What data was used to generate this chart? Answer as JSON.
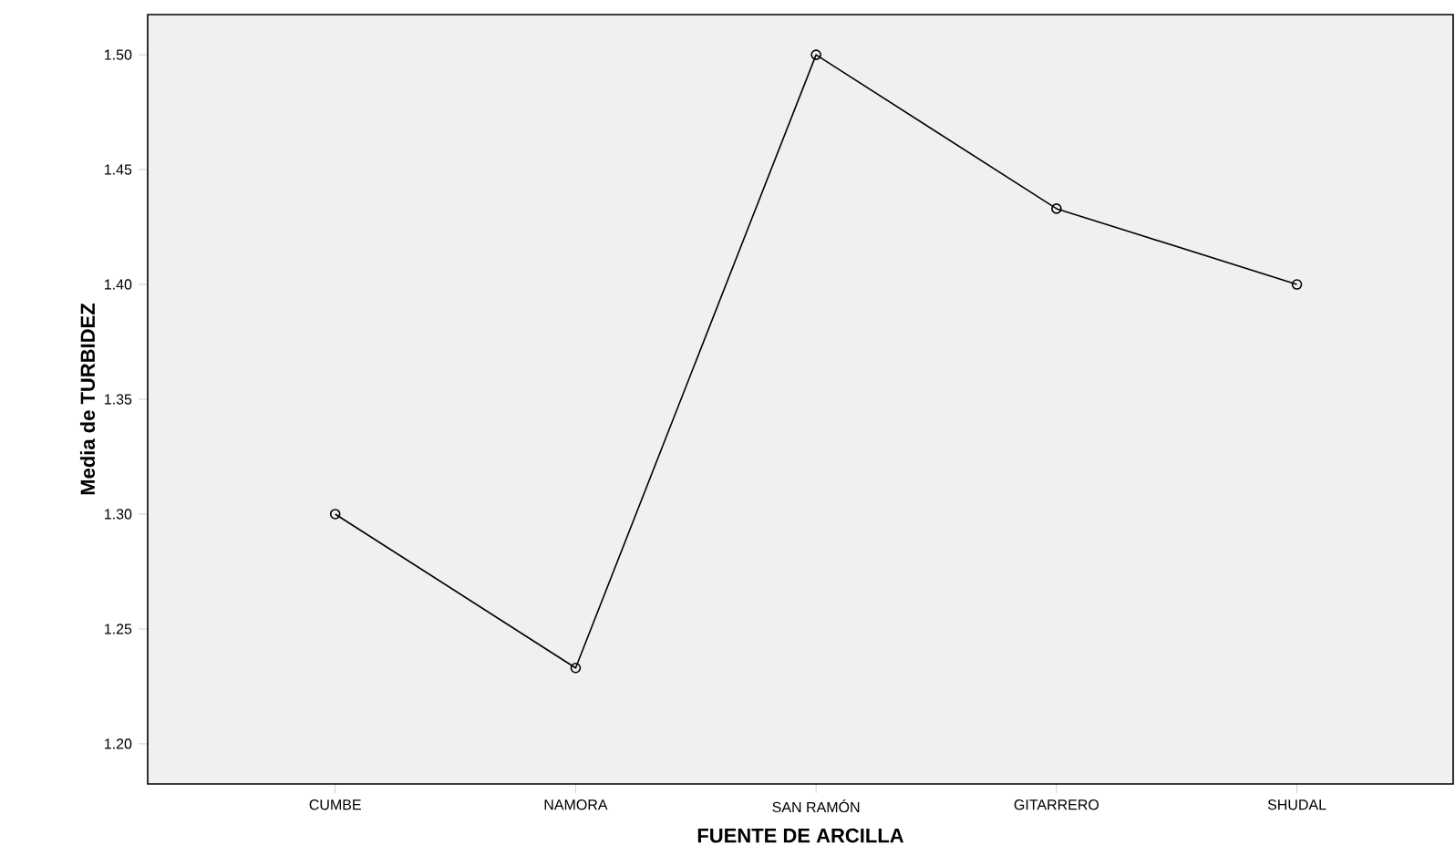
{
  "chart_data": {
    "type": "line",
    "xlabel": "FUENTE DE ARCILLA",
    "ylabel": "Media de TURBIDEZ",
    "categories": [
      "CUMBE",
      "NAMORA",
      "SAN RAMÓN",
      "GITARRERO",
      "SHUDAL"
    ],
    "series": [
      {
        "color": "#000000",
        "values": [
          1.3,
          1.233,
          1.5,
          1.433,
          1.4
        ]
      }
    ],
    "ylim": [
      1.1825,
      1.5175
    ],
    "yticks": [
      {
        "value": 1.2,
        "label": "1.20"
      },
      {
        "value": 1.25,
        "label": "1.25"
      },
      {
        "value": 1.3,
        "label": "1.30"
      },
      {
        "value": 1.35,
        "label": "1.35"
      },
      {
        "value": 1.4,
        "label": "1.40"
      },
      {
        "value": 1.45,
        "label": "1.45"
      },
      {
        "value": 1.5,
        "label": "1.50"
      }
    ],
    "marker": "circle",
    "line_style": "solid",
    "grid": false,
    "legend": false
  }
}
